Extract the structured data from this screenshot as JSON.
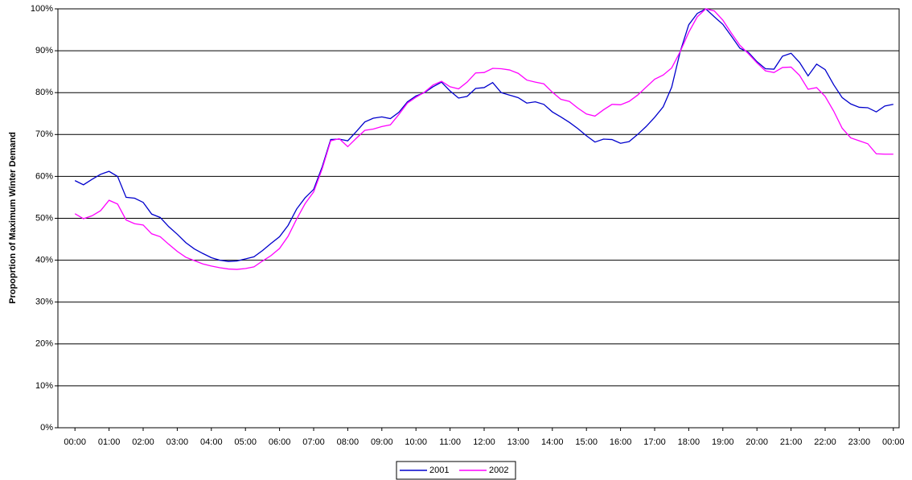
{
  "chart_data": {
    "type": "line",
    "y_label": "Propoprtion of Maximum Winter Demand",
    "x": [
      0,
      0.25,
      0.5,
      0.75,
      1,
      1.25,
      1.5,
      1.75,
      2,
      2.25,
      2.5,
      2.75,
      3,
      3.25,
      3.5,
      3.75,
      4,
      4.25,
      4.5,
      4.75,
      5,
      5.25,
      5.5,
      5.75,
      6,
      6.25,
      6.5,
      6.75,
      7,
      7.25,
      7.5,
      7.75,
      8,
      8.25,
      8.5,
      8.75,
      9,
      9.25,
      9.5,
      9.75,
      10,
      10.25,
      10.5,
      10.75,
      11,
      11.25,
      11.5,
      11.75,
      12,
      12.25,
      12.5,
      12.75,
      13,
      13.25,
      13.5,
      13.75,
      14,
      14.25,
      14.5,
      14.75,
      15,
      15.25,
      15.5,
      15.75,
      16,
      16.25,
      16.5,
      16.75,
      17,
      17.25,
      17.5,
      17.75,
      18,
      18.25,
      18.5,
      18.75,
      19,
      19.25,
      19.5,
      19.75,
      20,
      20.25,
      20.5,
      20.75,
      21,
      21.25,
      21.5,
      21.75,
      22,
      22.25,
      22.5,
      22.75,
      23,
      23.25,
      23.5,
      23.75,
      24
    ],
    "series": [
      {
        "name": "2001",
        "color": "#0000cc",
        "values": [
          59,
          58,
          59.3,
          60.5,
          61.2,
          60,
          55,
          54.8,
          53.8,
          51,
          50.2,
          48,
          46.2,
          44.2,
          42.7,
          41.6,
          40.6,
          40,
          39.7,
          39.8,
          40.3,
          40.8,
          42.3,
          44,
          45.6,
          48.3,
          52.2,
          54.9,
          56.9,
          62.3,
          68.8,
          68.9,
          68.5,
          70.7,
          73,
          73.9,
          74.2,
          73.8,
          75.3,
          77.8,
          79.2,
          80,
          81.4,
          82.5,
          80.4,
          78.7,
          79.1,
          81,
          81.2,
          82.4,
          80,
          79.4,
          78.8,
          77.5,
          77.8,
          77.2,
          75.4,
          74.2,
          72.9,
          71.4,
          69.7,
          68.2,
          68.9,
          68.8,
          67.9,
          68.3,
          70,
          71.9,
          74.1,
          76.6,
          81.3,
          89.8,
          96.2,
          98.9,
          100,
          98.1,
          96.3,
          93.5,
          90.6,
          89.6,
          87.4,
          85.7,
          85.6,
          88.7,
          89.4,
          87.2,
          84,
          86.8,
          85.5,
          81.9,
          78.8,
          77.3,
          76.5,
          76.4,
          75.4,
          76.8,
          77.2
        ]
      },
      {
        "name": "2002",
        "color": "#ff00ff",
        "values": [
          51.1,
          49.9,
          50.6,
          51.8,
          54.3,
          53.4,
          49.6,
          48.7,
          48.4,
          46.3,
          45.6,
          43.8,
          42.1,
          40.7,
          39.9,
          39.1,
          38.6,
          38.2,
          37.9,
          37.8,
          38,
          38.4,
          39.8,
          41.1,
          42.8,
          45.7,
          49.8,
          53.5,
          56.3,
          61.8,
          68.5,
          69,
          67.1,
          69.1,
          71,
          71.3,
          71.9,
          72.3,
          74.8,
          77.5,
          78.9,
          80.1,
          81.8,
          82.7,
          81.4,
          80.9,
          82.5,
          84.7,
          84.8,
          85.8,
          85.7,
          85.4,
          84.6,
          83,
          82.5,
          82.1,
          80.1,
          78.4,
          77.9,
          76.3,
          74.9,
          74.4,
          75.9,
          77.2,
          77.1,
          77.9,
          79.4,
          81.3,
          83.2,
          84.2,
          85.9,
          89.8,
          94.4,
          98.1,
          100,
          99.5,
          97.3,
          94.2,
          91.3,
          89.3,
          87.1,
          85.2,
          84.8,
          86,
          86.1,
          84.1,
          80.8,
          81.2,
          79.1,
          75.6,
          71.5,
          69.2,
          68.5,
          67.8,
          65.4,
          65.3,
          65.3
        ]
      }
    ],
    "xlim": [
      -0.5,
      24.17
    ],
    "xticks": [
      {
        "value": 0,
        "label": "00:00"
      },
      {
        "value": 1,
        "label": "01:00"
      },
      {
        "value": 2,
        "label": "02:00"
      },
      {
        "value": 3,
        "label": "03:00"
      },
      {
        "value": 4,
        "label": "04:00"
      },
      {
        "value": 5,
        "label": "05:00"
      },
      {
        "value": 6,
        "label": "06:00"
      },
      {
        "value": 7,
        "label": "07:00"
      },
      {
        "value": 8,
        "label": "08:00"
      },
      {
        "value": 9,
        "label": "09:00"
      },
      {
        "value": 10,
        "label": "10:00"
      },
      {
        "value": 11,
        "label": "11:00"
      },
      {
        "value": 12,
        "label": "12:00"
      },
      {
        "value": 13,
        "label": "13:00"
      },
      {
        "value": 14,
        "label": "14:00"
      },
      {
        "value": 15,
        "label": "15:00"
      },
      {
        "value": 16,
        "label": "16:00"
      },
      {
        "value": 17,
        "label": "17:00"
      },
      {
        "value": 18,
        "label": "18:00"
      },
      {
        "value": 19,
        "label": "19:00"
      },
      {
        "value": 20,
        "label": "20:00"
      },
      {
        "value": 21,
        "label": "21:00"
      },
      {
        "value": 22,
        "label": "22:00"
      },
      {
        "value": 23,
        "label": "23:00"
      },
      {
        "value": 24,
        "label": "00:00"
      }
    ],
    "ylim": [
      0,
      100
    ],
    "yticks": [
      {
        "value": 0,
        "label": "0%"
      },
      {
        "value": 10,
        "label": "10%"
      },
      {
        "value": 20,
        "label": "20%"
      },
      {
        "value": 30,
        "label": "30%"
      },
      {
        "value": 40,
        "label": "40%"
      },
      {
        "value": 50,
        "label": "50%"
      },
      {
        "value": 60,
        "label": "60%"
      },
      {
        "value": 70,
        "label": "70%"
      },
      {
        "value": 80,
        "label": "80%"
      },
      {
        "value": 90,
        "label": "90%"
      },
      {
        "value": 100,
        "label": "100%"
      }
    ],
    "grid": true,
    "legend": "bottom"
  }
}
